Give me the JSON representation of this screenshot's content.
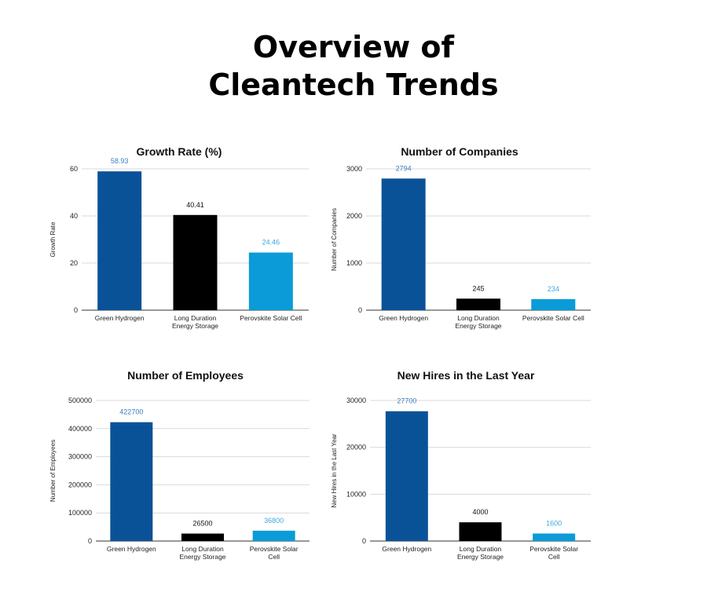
{
  "page": {
    "title_line1": "Overview of",
    "title_line2": "Cleantech Trends"
  },
  "colors": {
    "green_hydrogen": "#0a5298",
    "long_duration": "#000000",
    "perovskite": "#0a9bd8",
    "label_blue": "#3a7fc1",
    "label_light": "#3aa9de",
    "grid": "#d9d9d9",
    "axis": "#333333"
  },
  "chart_data": [
    {
      "type": "bar",
      "title": "Growth Rate (%)",
      "ylabel": "Growth Rate",
      "xlabel": "",
      "categories": [
        [
          "Green Hydrogen"
        ],
        [
          "Long Duration",
          "Energy Storage"
        ],
        [
          "Perovskite Solar Cell"
        ]
      ],
      "values": [
        58.93,
        40.41,
        24.46
      ],
      "value_labels": [
        "58.93",
        "40.41",
        "24.46"
      ],
      "ylim": [
        0,
        60
      ],
      "yticks": [
        0,
        20,
        40,
        60
      ],
      "grid": true,
      "legend": "none"
    },
    {
      "type": "bar",
      "title": "Number of Companies",
      "ylabel": "Number of Companies",
      "xlabel": "",
      "categories": [
        [
          "Green Hydrogen"
        ],
        [
          "Long Duration",
          "Energy Storage"
        ],
        [
          "Perovskite Solar Cell"
        ]
      ],
      "values": [
        2794,
        245,
        234
      ],
      "value_labels": [
        "2794",
        "245",
        "234"
      ],
      "ylim": [
        0,
        3000
      ],
      "yticks": [
        0,
        1000,
        2000,
        3000
      ],
      "grid": true,
      "legend": "none"
    },
    {
      "type": "bar",
      "title": "Number of Employees",
      "ylabel": "Number of Employees",
      "xlabel": "",
      "categories": [
        [
          "Green Hydrogen"
        ],
        [
          "Long Duration",
          "Energy Storage"
        ],
        [
          "Perovskite Solar",
          "Cell"
        ]
      ],
      "values": [
        422700,
        26500,
        36800
      ],
      "value_labels": [
        "422700",
        "26500",
        "36800"
      ],
      "ylim": [
        0,
        500000
      ],
      "yticks": [
        0,
        100000,
        200000,
        300000,
        400000,
        500000
      ],
      "grid": true,
      "legend": "none"
    },
    {
      "type": "bar",
      "title": "New Hires in the Last Year",
      "ylabel": "New Hires in the Last Year",
      "xlabel": "",
      "categories": [
        [
          "Green Hydrogen"
        ],
        [
          "Long Duration",
          "Energy Storage"
        ],
        [
          "Perovskite Solar",
          "Cell"
        ]
      ],
      "values": [
        27700,
        4000,
        1600
      ],
      "value_labels": [
        "27700",
        "4000",
        "1600"
      ],
      "ylim": [
        0,
        30000
      ],
      "yticks": [
        0,
        10000,
        20000,
        30000
      ],
      "grid": true,
      "legend": "none"
    }
  ]
}
